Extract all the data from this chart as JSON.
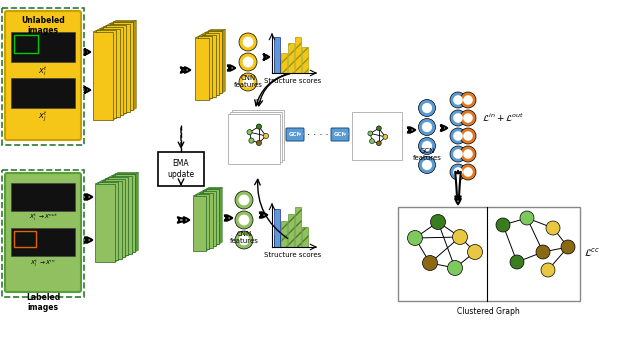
{
  "bg_color": "#ffffff",
  "unlabeled_text": "Unlabeled\nimages",
  "labeled_text": "Labeled\nimages",
  "cnn_features_text_top": "CNN\nfeatures",
  "cnn_features_text_bot": "CNN\nfeatures",
  "structure_scores_top": "Structure scores",
  "structure_scores_bot": "Structure scores",
  "ema_text": "EMA\nupdate",
  "gcn_features_text": "GCN\nfeatures",
  "clustered_graph_text": "Clustered Graph",
  "loss_text": "$\\mathcal{L}^{in}+\\mathcal{L}^{out}$",
  "loss_cc_text": "$\\mathcal{L}^{cc}$",
  "yellow": "#F5C518",
  "yellow_dark": "#C8A000",
  "light_green": "#90C060",
  "dark_green": "#5A9E3A",
  "deeper_green": "#2E7D32",
  "orange": "#E07820",
  "blue_gcn": "#5B9BD5",
  "node_green_light": "#7DC95E",
  "node_green_dark": "#3A7D1E",
  "node_yellow": "#E8C840",
  "node_brown": "#8B6914"
}
